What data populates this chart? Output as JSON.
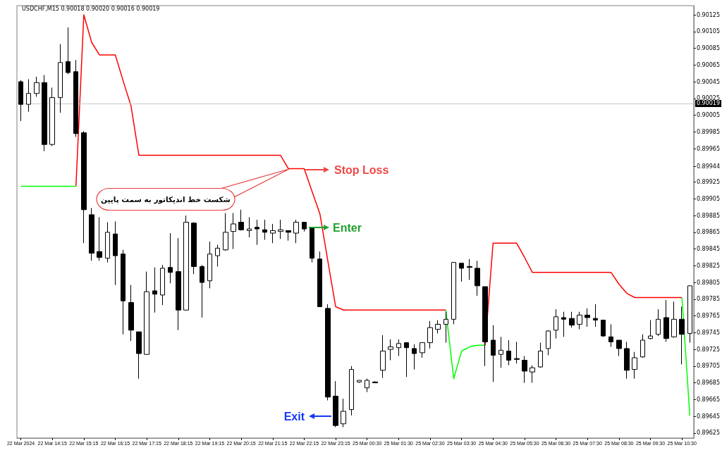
{
  "chart_data": {
    "type": "candlestick",
    "title": "USDCHF,M15 0.90018 0.90020 0.90016 0.90019",
    "categories": [
      "22 Mar 2024",
      null,
      null,
      null,
      "22 Mar 14:15",
      null,
      null,
      null,
      "22 Mar 15:15",
      null,
      null,
      null,
      "22 Mar 16:15",
      null,
      null,
      null,
      "22 Mar 17:15",
      null,
      null,
      null,
      "22 Mar 18:15",
      null,
      null,
      null,
      "22 Mar 19:15",
      null,
      null,
      null,
      "22 Mar 20:15",
      null,
      null,
      null,
      "22 Mar 21:15",
      null,
      null,
      null,
      "22 Mar 22:15",
      null,
      null,
      null,
      "22 Mar 23:15",
      null,
      null,
      null,
      "25 Mar 00:30",
      null,
      null,
      null,
      "25 Mar 01:30",
      null,
      null,
      null,
      "25 Mar 02:30",
      null,
      null,
      null,
      "25 Mar 03:30",
      null,
      null,
      null,
      "25 Mar 04:30",
      null,
      null,
      null,
      "25 Mar 05:30",
      null,
      null,
      null,
      "25 Mar 06:30",
      null,
      null,
      null,
      "25 Mar 07:30",
      null,
      null,
      null,
      "25 Mar 08:30",
      null,
      null,
      null,
      "25 Mar 09:30",
      null,
      null,
      null,
      "25 Mar 10:30",
      null
    ],
    "ohlc": [
      [
        0.90045,
        0.90047,
        0.89998,
        0.90018
      ],
      [
        0.90018,
        0.90048,
        0.90009,
        0.90031
      ],
      [
        0.90031,
        0.90051,
        0.90027,
        0.90044
      ],
      [
        0.90044,
        0.90053,
        0.89962,
        0.8997
      ],
      [
        0.8997,
        0.90038,
        0.89968,
        0.90026
      ],
      [
        0.90026,
        0.9009,
        0.90008,
        0.90068
      ],
      [
        0.90069,
        0.9011,
        0.90054,
        0.90056
      ],
      [
        0.90057,
        0.90071,
        0.89979,
        0.89983
      ],
      [
        0.89984,
        0.89986,
        0.89852,
        0.89892
      ],
      [
        0.89886,
        0.89894,
        0.89831,
        0.8984
      ],
      [
        0.89842,
        0.89883,
        0.89831,
        0.89835
      ],
      [
        0.89834,
        0.89877,
        0.89829,
        0.89865
      ],
      [
        0.89863,
        0.89878,
        0.89802,
        0.89837
      ],
      [
        0.89839,
        0.89844,
        0.89743,
        0.89783
      ],
      [
        0.89781,
        0.89802,
        0.89735,
        0.89748
      ],
      [
        0.89746,
        0.89746,
        0.8969,
        0.8972
      ],
      [
        0.89719,
        0.89818,
        0.89719,
        0.89794
      ],
      [
        0.89795,
        0.89823,
        0.89769,
        0.89791
      ],
      [
        0.8979,
        0.89826,
        0.89778,
        0.89822
      ],
      [
        0.89823,
        0.89864,
        0.89804,
        0.89817
      ],
      [
        0.89818,
        0.89858,
        0.89748,
        0.89772
      ],
      [
        0.89772,
        0.89885,
        0.89772,
        0.89877
      ],
      [
        0.89876,
        0.89877,
        0.89815,
        0.89824
      ],
      [
        0.89824,
        0.89826,
        0.89763,
        0.89805
      ],
      [
        0.89807,
        0.89854,
        0.89798,
        0.89839
      ],
      [
        0.89837,
        0.8985,
        0.89824,
        0.89846
      ],
      [
        0.89844,
        0.89888,
        0.89843,
        0.89865
      ],
      [
        0.89866,
        0.89888,
        0.89845,
        0.89875
      ],
      [
        0.89877,
        0.89892,
        0.89867,
        0.89868
      ],
      [
        0.89867,
        0.89883,
        0.89859,
        0.89869
      ],
      [
        0.89871,
        0.8988,
        0.8985,
        0.89869
      ],
      [
        0.89868,
        0.8988,
        0.89856,
        0.89865
      ],
      [
        0.89864,
        0.89875,
        0.89852,
        0.89867
      ],
      [
        0.89866,
        0.8988,
        0.89857,
        0.89868
      ],
      [
        0.89867,
        0.89867,
        0.89855,
        0.89865
      ],
      [
        0.89864,
        0.8988,
        0.89852,
        0.89877
      ],
      [
        0.89877,
        0.89877,
        0.89866,
        0.89869
      ],
      [
        0.89871,
        0.89871,
        0.89829,
        0.89834
      ],
      [
        0.89833,
        0.89842,
        0.89776,
        0.89776
      ],
      [
        0.89774,
        0.89779,
        0.89664,
        0.89668
      ],
      [
        0.89669,
        0.89687,
        0.89632,
        0.89634
      ],
      [
        0.89636,
        0.89666,
        0.89632,
        0.89651
      ],
      [
        0.89653,
        0.89705,
        0.89646,
        0.89701
      ],
      [
        0.89686,
        0.89688,
        0.89685,
        0.89688
      ],
      [
        0.89679,
        0.8969,
        0.89674,
        0.89688
      ],
      [
        0.89686,
        0.89687,
        0.89685,
        0.89685
      ],
      [
        0.897,
        0.89742,
        0.89691,
        0.89723
      ],
      [
        0.89725,
        0.89737,
        0.89712,
        0.89728
      ],
      [
        0.89727,
        0.89737,
        0.89717,
        0.89732
      ],
      [
        0.89733,
        0.89733,
        0.89692,
        0.89727
      ],
      [
        0.89726,
        0.89731,
        0.89701,
        0.8972
      ],
      [
        0.89721,
        0.89733,
        0.89715,
        0.89733
      ],
      [
        0.89733,
        0.89759,
        0.89726,
        0.89751
      ],
      [
        0.89749,
        0.8976,
        0.89744,
        0.89755
      ],
      [
        0.89755,
        0.8977,
        0.89733,
        0.89761
      ],
      [
        0.89761,
        0.89829,
        0.89755,
        0.89829
      ],
      [
        0.89828,
        0.89828,
        0.89806,
        0.89822
      ],
      [
        0.89824,
        0.89833,
        0.89808,
        0.89823
      ],
      [
        0.89822,
        0.89831,
        0.89789,
        0.89801
      ],
      [
        0.898,
        0.898,
        0.89705,
        0.89734
      ],
      [
        0.89736,
        0.89754,
        0.89686,
        0.89718
      ],
      [
        0.89719,
        0.8974,
        0.89703,
        0.89724
      ],
      [
        0.89723,
        0.89736,
        0.89706,
        0.89712
      ],
      [
        0.89714,
        0.89734,
        0.89708,
        0.89713
      ],
      [
        0.89712,
        0.89717,
        0.89685,
        0.89699
      ],
      [
        0.89698,
        0.89706,
        0.89685,
        0.89703
      ],
      [
        0.89704,
        0.89733,
        0.89703,
        0.89723
      ],
      [
        0.89726,
        0.89748,
        0.89718,
        0.89747
      ],
      [
        0.89748,
        0.89773,
        0.89738,
        0.89764
      ],
      [
        0.89763,
        0.8977,
        0.8974,
        0.89761
      ],
      [
        0.89762,
        0.8977,
        0.89751,
        0.89754
      ],
      [
        0.89755,
        0.8977,
        0.89749,
        0.89766
      ],
      [
        0.89766,
        0.89774,
        0.89752,
        0.89763
      ],
      [
        0.89762,
        0.89779,
        0.89752,
        0.8976
      ],
      [
        0.8976,
        0.8976,
        0.8974,
        0.89741
      ],
      [
        0.8974,
        0.89755,
        0.89728,
        0.89734
      ],
      [
        0.89736,
        0.89736,
        0.89717,
        0.89726
      ],
      [
        0.89726,
        0.89734,
        0.8969,
        0.897
      ],
      [
        0.89701,
        0.89722,
        0.8969,
        0.89715
      ],
      [
        0.89716,
        0.89743,
        0.89715,
        0.89736
      ],
      [
        0.89738,
        0.8976,
        0.89737,
        0.89741
      ],
      [
        0.89743,
        0.89773,
        0.89741,
        0.89761
      ],
      [
        0.89763,
        0.89784,
        0.89734,
        0.89738
      ],
      [
        0.8974,
        0.89782,
        0.89739,
        0.89761
      ],
      [
        0.89761,
        0.89776,
        0.89707,
        0.89743
      ],
      [
        0.89744,
        0.89801,
        0.89733,
        0.89801
      ]
    ],
    "series": [
      {
        "type": "line",
        "color": "#ff0000",
        "values": [
          null,
          null,
          null,
          null,
          null,
          null,
          null,
          0.8992,
          0.90125,
          0.90092,
          0.90077,
          0.90077,
          0.90077,
          0.90046,
          0.90016,
          0.89957,
          0.89957,
          0.89957,
          0.89957,
          0.89957,
          0.89957,
          0.89957,
          0.89957,
          0.89957,
          0.89957,
          0.89957,
          0.89957,
          0.89957,
          0.89957,
          0.89957,
          0.89957,
          0.89957,
          0.89957,
          0.89957,
          0.89941,
          0.89941,
          0.89941,
          0.89914,
          0.89887,
          0.89831,
          0.89776,
          0.89772,
          0.89772,
          0.89772,
          0.89772,
          0.89772,
          0.89772,
          0.89772,
          0.89772,
          0.89772,
          0.89772,
          0.89772,
          0.89772,
          0.89772,
          0.89772,
          null,
          null,
          null,
          null,
          0.8973,
          0.89852,
          0.89852,
          0.89852,
          0.89852,
          0.89835,
          0.89817,
          0.89817,
          0.89817,
          0.89817,
          0.89817,
          0.89817,
          0.89817,
          0.89817,
          0.89817,
          0.89817,
          0.89817,
          0.89803,
          0.89792,
          0.89787,
          0.89787,
          0.89787,
          0.89787,
          0.89787,
          0.89787,
          0.89787,
          null
        ]
      },
      {
        "type": "line",
        "color": "#00ff00",
        "values": [
          0.8992,
          0.8992,
          0.8992,
          0.8992,
          0.8992,
          0.8992,
          0.8992,
          0.8992,
          null,
          null,
          null,
          null,
          null,
          null,
          null,
          null,
          null,
          null,
          null,
          null,
          null,
          null,
          null,
          null,
          null,
          null,
          null,
          null,
          null,
          null,
          null,
          null,
          null,
          null,
          null,
          null,
          null,
          null,
          null,
          null,
          null,
          null,
          null,
          null,
          null,
          null,
          null,
          null,
          null,
          null,
          null,
          null,
          null,
          null,
          0.89772,
          0.8969,
          0.89723,
          0.89728,
          0.8973,
          0.8973,
          null,
          null,
          null,
          null,
          null,
          null,
          null,
          null,
          null,
          null,
          null,
          null,
          null,
          null,
          null,
          null,
          null,
          null,
          null,
          null,
          null,
          null,
          null,
          null,
          0.89787,
          0.89646
        ]
      }
    ],
    "ylim": [
      0.89619,
      0.90136
    ],
    "yticks": [
      0.89625,
      0.89645,
      0.89665,
      0.89685,
      0.89705,
      0.89725,
      0.89745,
      0.89765,
      0.89785,
      0.89805,
      0.89825,
      0.89845,
      0.89865,
      0.89885,
      0.89905,
      0.89925,
      0.89944,
      0.89965,
      0.89985,
      0.90005,
      0.90025,
      0.90045,
      0.90065,
      0.90085,
      0.90105,
      0.90125
    ],
    "ref_lines": [
      {
        "axis": "y",
        "value": 0.90019,
        "label": "0.90019",
        "color": "#c8c8c8"
      }
    ],
    "annotations": [
      "شکست خط اندیکاتور به سمت پایین",
      "Stop Loss",
      "Enter",
      "Exit"
    ],
    "grid": false
  }
}
